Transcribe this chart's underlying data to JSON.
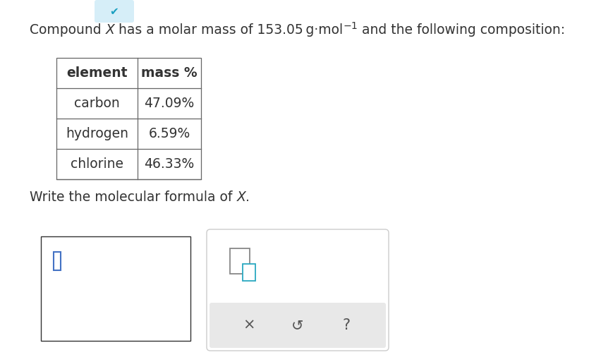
{
  "bg_color": "#ffffff",
  "text_color": "#333333",
  "table_border_color": "#666666",
  "input_border_color": "#333333",
  "tool_border_color": "#cccccc",
  "tool_bg_color": "#e8e8e8",
  "blue_cursor_color": "#4472c4",
  "chevron_bg": "#d6eef8",
  "chevron_fg": "#1a9fc0",
  "table_headers": [
    "element",
    "mass %"
  ],
  "table_rows": [
    [
      "carbon",
      "47.09%"
    ],
    [
      "hydrogen",
      "6.59%"
    ],
    [
      "chlorine",
      "46.33%"
    ]
  ],
  "title_normal_1": "Compound ",
  "title_italic": "X",
  "title_normal_2": " has a molar mass of 153.05 g·mol",
  "title_super": "−1",
  "title_normal_3": " and the following composition:",
  "write_normal_1": "Write the molecular formula of ",
  "write_italic": "X",
  "write_normal_2": ".",
  "btn_labels": [
    "×",
    "↺",
    "?"
  ]
}
